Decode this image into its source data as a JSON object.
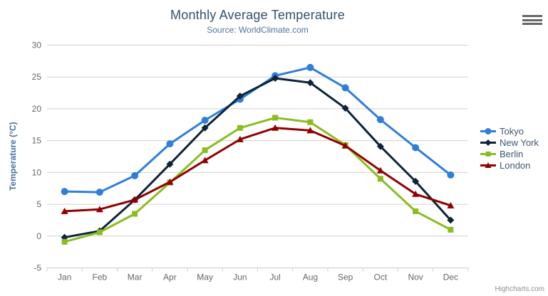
{
  "chart": {
    "title": "Monthly Average Temperature",
    "subtitle": "Source: WorldClimate.com",
    "credits": "Highcharts.com"
  },
  "chart_data": {
    "type": "line",
    "title": "Monthly Average Temperature",
    "subtitle": "Source: WorldClimate.com",
    "categories": [
      "Jan",
      "Feb",
      "Mar",
      "Apr",
      "May",
      "Jun",
      "Jul",
      "Aug",
      "Sep",
      "Oct",
      "Nov",
      "Dec"
    ],
    "series": [
      {
        "name": "Tokyo",
        "color": "#2f7ed8",
        "marker": "circle",
        "values": [
          7.0,
          6.9,
          9.5,
          14.5,
          18.2,
          21.5,
          25.2,
          26.5,
          23.3,
          18.3,
          13.9,
          9.6
        ]
      },
      {
        "name": "New York",
        "color": "#0d233a",
        "marker": "diamond",
        "values": [
          -0.2,
          0.8,
          5.7,
          11.3,
          17.0,
          22.0,
          24.8,
          24.1,
          20.1,
          14.1,
          8.6,
          2.5
        ]
      },
      {
        "name": "Berlin",
        "color": "#8bbc21",
        "marker": "square",
        "values": [
          -0.9,
          0.6,
          3.5,
          8.4,
          13.5,
          17.0,
          18.6,
          17.9,
          14.3,
          9.0,
          3.9,
          1.0
        ]
      },
      {
        "name": "London",
        "color": "#910000",
        "marker": "triangle",
        "values": [
          3.9,
          4.2,
          5.7,
          8.5,
          11.9,
          15.2,
          17.0,
          16.6,
          14.2,
          10.3,
          6.6,
          4.8
        ]
      }
    ],
    "xlabel": "",
    "ylabel": "Temperature (°C)",
    "ylim": [
      -5,
      30
    ],
    "yticks": [
      30,
      25,
      20,
      15,
      10,
      5,
      0,
      -5
    ],
    "grid": true,
    "legend_position": "right",
    "colors": {
      "grid_line": "#d0d0d0",
      "axis_line": "#c0d0e0",
      "axis_label": "#666666",
      "title_text": "#335069",
      "subtitle_text": "#4d759e",
      "legend_text": "#3e576f"
    }
  }
}
